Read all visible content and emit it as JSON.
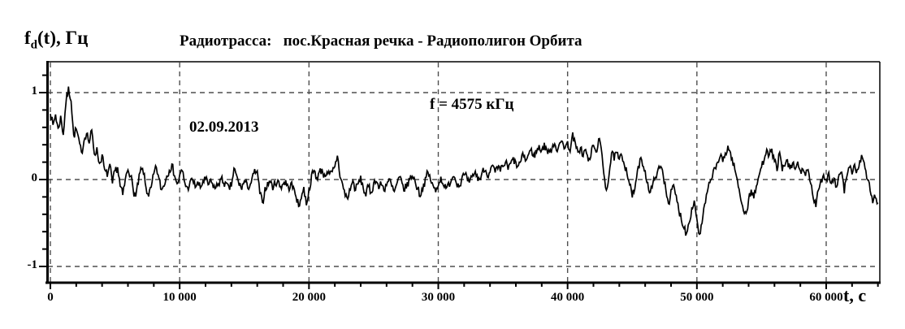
{
  "figure": {
    "y_axis_label": {
      "f": "f",
      "sub": "d",
      "rest": "(t), Гц"
    },
    "title": "Радиотрасса:   пос.Красная речка - Радиополигон Орбита",
    "x_axis_label": "t, с",
    "annotations": {
      "date": "02.09.2013",
      "frequency": "f = 4575 кГц"
    }
  },
  "colors": {
    "line": "#000000",
    "grid": "#4f4f4f",
    "frame": "#000000",
    "background": "#ffffff"
  },
  "chart_data": {
    "type": "line",
    "title": "Радиотрасса: пос.Красная речка - Радиополигон Орбита",
    "xlabel": "t, с",
    "ylabel": "fd(t), Гц",
    "annotations": [
      "02.09.2013",
      "f = 4575 кГц"
    ],
    "grid": "dashed",
    "legend": "none",
    "xlim": [
      0,
      64100
    ],
    "ylim": [
      -1.19,
      1.36
    ],
    "x_major_tick": 10000,
    "x_minor_tick": 2000,
    "y_major_tick": 1,
    "y_minor_tick": 0.2,
    "x_tick_values": [
      0,
      10000,
      20000,
      30000,
      40000,
      50000,
      60000
    ],
    "x_tick_labels": [
      "0",
      "10 000",
      "20 000",
      "30 000",
      "40 000",
      "50 000",
      "60 000"
    ],
    "y_tick_values": [
      1,
      0,
      -1
    ],
    "y_tick_labels": [
      "1",
      "0",
      "-1"
    ],
    "x_start": 0,
    "x_step": 200,
    "values": [
      0.78,
      0.62,
      0.75,
      0.58,
      0.72,
      0.52,
      0.88,
      1.05,
      0.92,
      0.5,
      0.58,
      0.45,
      0.3,
      0.45,
      0.55,
      0.42,
      0.56,
      0.3,
      0.35,
      0.18,
      0.28,
      0.1,
      0.05,
      0.16,
      -0.05,
      0.1,
      0.14,
      -0.08,
      -0.18,
      0.0,
      0.12,
      0.06,
      -0.12,
      -0.2,
      -0.04,
      0.12,
      0.08,
      -0.1,
      -0.18,
      -0.1,
      0.06,
      0.14,
      0.0,
      -0.12,
      -0.06,
      0.04,
      0.12,
      0.16,
      0.06,
      -0.06,
      0.04,
      0.1,
      -0.04,
      -0.1,
      -0.04,
      0.0,
      -0.08,
      -0.04,
      -0.1,
      -0.02,
      0.0,
      -0.06,
      -0.02,
      -0.08,
      -0.1,
      -0.04,
      0.0,
      -0.03,
      -0.06,
      -0.1,
      -0.07,
      0.12,
      0.04,
      -0.06,
      -0.1,
      -0.02,
      -0.06,
      -0.08,
      0.0,
      0.1,
      0.08,
      -0.15,
      -0.28,
      -0.1,
      -0.05,
      -0.02,
      -0.1,
      -0.04,
      -0.02,
      -0.08,
      -0.05,
      -0.02,
      -0.1,
      -0.05,
      -0.1,
      -0.18,
      -0.32,
      -0.2,
      -0.1,
      -0.28,
      -0.12,
      0.04,
      0.1,
      0.02,
      0.08,
      0.12,
      0.04,
      0.1,
      0.05,
      0.08,
      0.14,
      0.28,
      0.04,
      -0.06,
      -0.18,
      -0.22,
      -0.1,
      -0.02,
      -0.12,
      -0.05,
      0.02,
      -0.1,
      -0.18,
      -0.08,
      -0.15,
      -0.05,
      0.0,
      -0.1,
      -0.05,
      -0.12,
      -0.05,
      0.0,
      -0.08,
      -0.15,
      -0.05,
      0.02,
      -0.05,
      -0.12,
      -0.05,
      0.0,
      0.05,
      -0.02,
      -0.1,
      -0.18,
      -0.1,
      0.0,
      0.08,
      0.0,
      -0.08,
      -0.14,
      -0.05,
      0.02,
      -0.05,
      -0.12,
      -0.05,
      0.0,
      0.05,
      -0.02,
      -0.08,
      0.0,
      0.05,
      0.02,
      -0.05,
      0.02,
      0.08,
      0.04,
      0.0,
      0.08,
      0.12,
      0.05,
      0.1,
      0.15,
      0.08,
      0.12,
      0.1,
      0.15,
      0.2,
      0.12,
      0.18,
      0.24,
      0.18,
      0.15,
      0.22,
      0.28,
      0.22,
      0.3,
      0.34,
      0.28,
      0.32,
      0.38,
      0.34,
      0.4,
      0.34,
      0.3,
      0.38,
      0.42,
      0.34,
      0.4,
      0.44,
      0.37,
      0.42,
      0.34,
      0.52,
      0.4,
      0.3,
      0.38,
      0.27,
      0.35,
      0.2,
      0.28,
      0.4,
      0.3,
      0.48,
      0.34,
      0.08,
      -0.12,
      0.05,
      0.3,
      0.24,
      0.3,
      0.22,
      0.28,
      0.18,
      0.08,
      -0.05,
      -0.2,
      -0.1,
      0.08,
      0.22,
      0.18,
      0.1,
      -0.05,
      -0.15,
      -0.06,
      0.05,
      0.1,
      0.15,
      0.05,
      -0.1,
      -0.28,
      -0.14,
      -0.08,
      -0.2,
      -0.35,
      -0.45,
      -0.55,
      -0.62,
      -0.48,
      -0.34,
      -0.25,
      -0.45,
      -0.65,
      -0.5,
      -0.3,
      -0.15,
      -0.05,
      0.05,
      0.12,
      0.2,
      0.27,
      0.2,
      0.3,
      0.38,
      0.3,
      0.18,
      0.08,
      -0.08,
      -0.22,
      -0.34,
      -0.4,
      -0.24,
      -0.12,
      -0.2,
      -0.1,
      0.05,
      0.14,
      0.24,
      0.37,
      0.28,
      0.33,
      0.22,
      0.12,
      0.3,
      0.1,
      0.16,
      0.22,
      0.1,
      0.18,
      0.12,
      0.2,
      0.08,
      0.14,
      0.04,
      0.1,
      -0.06,
      -0.2,
      -0.32,
      -0.12,
      0.0,
      0.05,
      0.0,
      0.08,
      -0.05,
      0.02,
      -0.08,
      0.04,
      0.1,
      -0.15,
      0.05,
      0.12,
      0.08,
      0.16,
      0.1,
      0.22,
      0.26,
      0.12,
      0.0,
      -0.12,
      -0.25,
      -0.2,
      -0.28
    ],
    "noise": {
      "amplitude": 0.05,
      "seed": 7,
      "subdivisions": 3
    }
  }
}
